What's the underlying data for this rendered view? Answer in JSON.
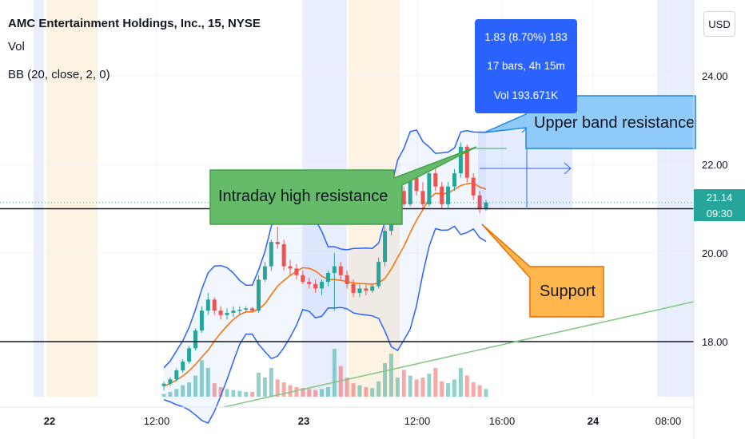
{
  "header": {
    "title": "AMC Entertainment Holdings, Inc., 15, NYSE",
    "vol_label": "Vol",
    "bb_label": "BB (20, close, 2, 0)",
    "currency_button": "USD"
  },
  "measure": {
    "line1": "1.83 (8.70%) 183",
    "line2": "17 bars, 4h 15m",
    "line3": "Vol 193.671K"
  },
  "price_tag": {
    "price": "21.14",
    "countdown": "09:30"
  },
  "annotations": {
    "intraday": "Intraday high resistance",
    "upper_band": "Upper band resistance",
    "support": "Support"
  },
  "colors": {
    "up": "#26a69a",
    "down": "#ef5350",
    "bb_band": "#2962ff",
    "bb_basis": "#ff6d00",
    "callout_green": "#66bb6a",
    "callout_blue": "#90caf9",
    "callout_orange": "#ffb74d",
    "measure_blue": "#2962ff",
    "trend_line": "#81c784"
  },
  "chart_data": {
    "type": "candlestick",
    "title": "AMC Entertainment Holdings, Inc., 15, NYSE",
    "yaxis": {
      "ticks": [
        "24.00",
        "22.00",
        "20.00",
        "18.00"
      ],
      "tick_values": [
        24,
        22,
        20,
        18
      ],
      "range": [
        16.5,
        25.5
      ]
    },
    "xaxis": {
      "ticks": [
        "22",
        "12:00",
        "23",
        "12:00",
        "16:00",
        "24",
        "08:00"
      ]
    },
    "horizontal_levels": [
      21.0,
      18.0
    ],
    "last_price": 21.14,
    "candles": [
      [
        17.0,
        17.1,
        16.9,
        17.05
      ],
      [
        17.05,
        17.2,
        17.0,
        17.15
      ],
      [
        17.15,
        17.4,
        17.1,
        17.35
      ],
      [
        17.35,
        17.6,
        17.3,
        17.55
      ],
      [
        17.55,
        17.9,
        17.5,
        17.85
      ],
      [
        17.85,
        18.3,
        17.8,
        18.25
      ],
      [
        18.25,
        18.8,
        18.2,
        18.7
      ],
      [
        18.7,
        19.1,
        18.6,
        18.95
      ],
      [
        18.95,
        19.0,
        18.6,
        18.7
      ],
      [
        18.7,
        18.8,
        18.5,
        18.6
      ],
      [
        18.6,
        18.75,
        18.5,
        18.65
      ],
      [
        18.65,
        18.8,
        18.55,
        18.7
      ],
      [
        18.7,
        18.8,
        18.6,
        18.72
      ],
      [
        18.72,
        18.8,
        18.65,
        18.75
      ],
      [
        18.75,
        18.78,
        18.68,
        18.7
      ],
      [
        18.7,
        19.5,
        18.65,
        19.4
      ],
      [
        19.4,
        19.8,
        19.35,
        19.7
      ],
      [
        19.7,
        20.3,
        19.6,
        20.25
      ],
      [
        20.25,
        20.6,
        20.1,
        20.2
      ],
      [
        20.2,
        20.3,
        19.6,
        19.7
      ],
      [
        19.7,
        19.85,
        19.5,
        19.65
      ],
      [
        19.65,
        19.75,
        19.4,
        19.5
      ],
      [
        19.5,
        19.6,
        19.3,
        19.35
      ],
      [
        19.35,
        19.45,
        19.2,
        19.3
      ],
      [
        19.3,
        19.4,
        19.1,
        19.2
      ],
      [
        19.2,
        19.4,
        19.05,
        19.35
      ],
      [
        19.35,
        19.6,
        19.25,
        19.55
      ],
      [
        19.55,
        20.0,
        18.7,
        19.7
      ],
      [
        19.7,
        19.8,
        19.4,
        19.5
      ],
      [
        19.5,
        19.6,
        19.2,
        19.3
      ],
      [
        19.3,
        19.4,
        19.0,
        19.1
      ],
      [
        19.1,
        19.3,
        19.0,
        19.2
      ],
      [
        19.2,
        19.3,
        19.05,
        19.15
      ],
      [
        19.15,
        19.3,
        19.1,
        19.25
      ],
      [
        19.25,
        19.9,
        19.2,
        19.8
      ],
      [
        19.8,
        20.6,
        19.7,
        20.5
      ],
      [
        20.5,
        21.3,
        20.4,
        21.2
      ],
      [
        21.2,
        21.6,
        21.0,
        21.4
      ],
      [
        21.4,
        21.5,
        21.05,
        21.1
      ],
      [
        21.1,
        21.8,
        21.05,
        21.7
      ],
      [
        21.7,
        21.9,
        21.3,
        21.4
      ],
      [
        21.4,
        21.6,
        21.0,
        21.1
      ],
      [
        21.1,
        21.9,
        21.05,
        21.8
      ],
      [
        21.8,
        22.0,
        21.4,
        21.5
      ],
      [
        21.5,
        21.6,
        21.0,
        21.1
      ],
      [
        21.1,
        21.6,
        21.0,
        21.5
      ],
      [
        21.5,
        21.9,
        21.4,
        21.8
      ],
      [
        21.8,
        22.5,
        21.7,
        22.4
      ],
      [
        22.4,
        22.45,
        21.6,
        21.7
      ],
      [
        21.7,
        21.8,
        21.2,
        21.3
      ],
      [
        21.3,
        21.4,
        20.9,
        21.0
      ],
      [
        21.0,
        21.2,
        20.95,
        21.14
      ]
    ],
    "volume_level": [
      0.03,
      0.05,
      0.08,
      0.12,
      0.15,
      0.22,
      0.38,
      0.3,
      0.14,
      0.1,
      0.08,
      0.07,
      0.06,
      0.05,
      0.05,
      0.25,
      0.2,
      0.3,
      0.18,
      0.15,
      0.12,
      0.1,
      0.09,
      0.08,
      0.07,
      0.08,
      0.1,
      0.5,
      0.32,
      0.2,
      0.14,
      0.12,
      0.1,
      0.09,
      0.16,
      0.35,
      0.45,
      0.2,
      0.28,
      0.22,
      0.18,
      0.2,
      0.24,
      0.3,
      0.16,
      0.14,
      0.18,
      0.3,
      0.22,
      0.15,
      0.12,
      0.08
    ]
  }
}
